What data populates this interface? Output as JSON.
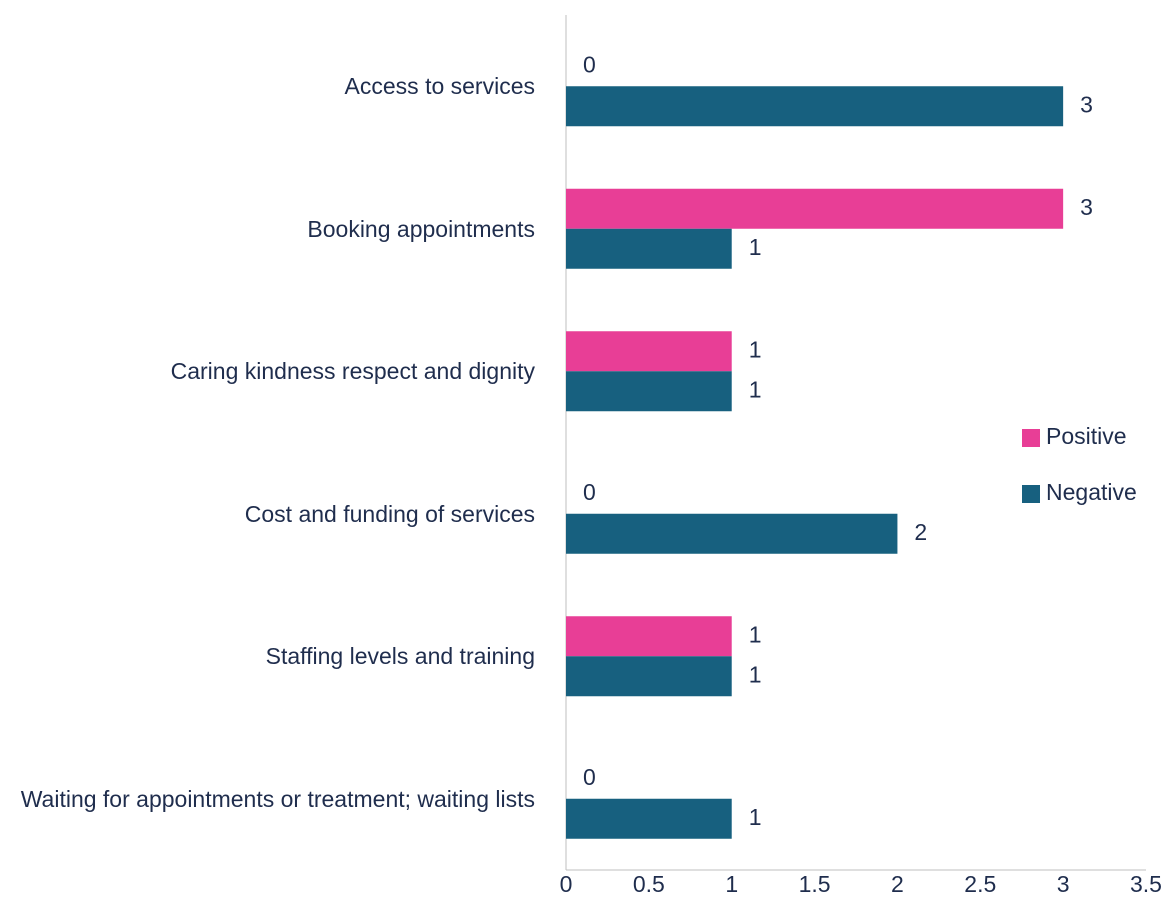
{
  "chart_data": {
    "type": "bar",
    "orientation": "horizontal",
    "categories": [
      "Access to services",
      "Booking appointments",
      "Caring kindness respect and dignity",
      "Cost and funding of services",
      "Staffing levels and training",
      "Waiting for appointments or treatment; waiting lists"
    ],
    "series": [
      {
        "name": "Positive",
        "color": "#e83e96",
        "values": [
          0,
          3,
          1,
          0,
          1,
          0
        ]
      },
      {
        "name": "Negative",
        "color": "#17607f",
        "values": [
          3,
          1,
          1,
          2,
          1,
          1
        ]
      }
    ],
    "xlim": [
      0,
      3.5
    ],
    "xticks": [
      0,
      0.5,
      1,
      1.5,
      2,
      2.5,
      3,
      3.5
    ],
    "legend": "right",
    "grid": false
  }
}
